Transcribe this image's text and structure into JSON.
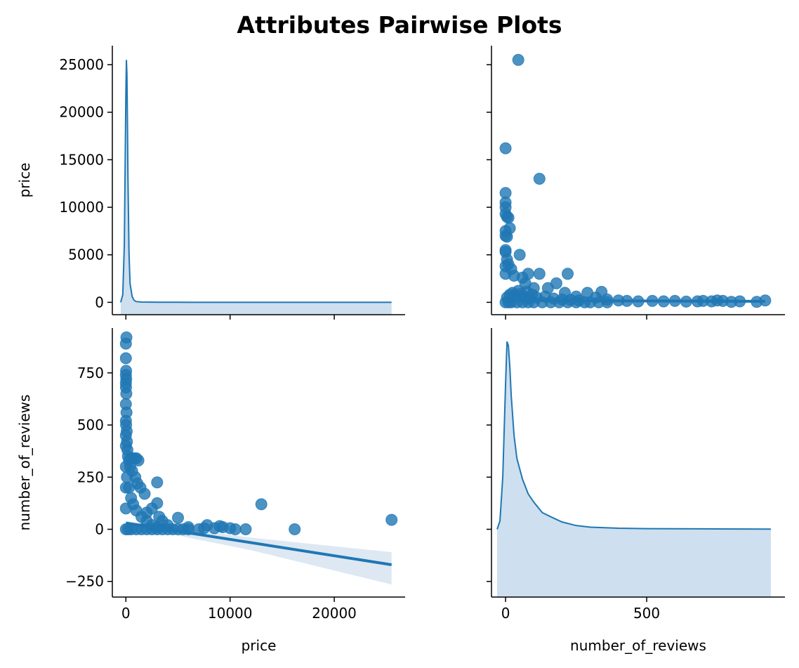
{
  "title": "Attributes Pairwise Plots",
  "colors": {
    "primary": "#1f77b4",
    "fill": "#c6d9ec",
    "band": "#dde8f3",
    "axis": "#000000"
  },
  "variables": [
    "price",
    "number_of_reviews"
  ],
  "chart_data": [
    {
      "panel": "price-vs-price",
      "type": "area",
      "xlabel": "",
      "ylabel": "price",
      "xlim": [
        -1300,
        26800
      ],
      "ylim": [
        -1300,
        27000
      ],
      "yticks": [
        0,
        5000,
        10000,
        15000,
        20000,
        25000
      ],
      "yticklabels": [
        "0",
        "5000",
        "10000",
        "15000",
        "20000",
        "25000"
      ],
      "x": [
        -500,
        -300,
        -150,
        0,
        50,
        100,
        150,
        200,
        300,
        400,
        600,
        800,
        1000,
        1500,
        3000,
        6000,
        10000,
        15000,
        20000,
        25500
      ],
      "density": [
        0,
        800,
        6000,
        22000,
        25500,
        24000,
        19000,
        13000,
        5200,
        2000,
        600,
        200,
        80,
        30,
        10,
        6,
        4,
        3,
        2,
        2
      ],
      "density_baseline": -1300
    },
    {
      "panel": "price-vs-number_of_reviews",
      "type": "scatter",
      "xlabel": "",
      "ylabel": "",
      "xlim": [
        -50,
        990
      ],
      "ylim": [
        -1300,
        27000
      ],
      "xticks": [
        0,
        500
      ],
      "yticks": [
        0,
        5000,
        10000,
        15000,
        20000,
        25000
      ],
      "points": [
        [
          45,
          25500
        ],
        [
          0,
          16200
        ],
        [
          120,
          13000
        ],
        [
          0,
          11500
        ],
        [
          0,
          10500
        ],
        [
          0,
          10000
        ],
        [
          5,
          9000
        ],
        [
          0,
          9300
        ],
        [
          10,
          8900
        ],
        [
          15,
          7800
        ],
        [
          0,
          7500
        ],
        [
          0,
          7000
        ],
        [
          5,
          6900
        ],
        [
          50,
          5000
        ],
        [
          0,
          5500
        ],
        [
          0,
          5300
        ],
        [
          5,
          4500
        ],
        [
          10,
          4000
        ],
        [
          0,
          3800
        ],
        [
          20,
          3500
        ],
        [
          80,
          3000
        ],
        [
          120,
          3000
        ],
        [
          220,
          3000
        ],
        [
          180,
          2000
        ],
        [
          150,
          1500
        ],
        [
          210,
          1000
        ],
        [
          290,
          1000
        ],
        [
          340,
          1100
        ],
        [
          0,
          3000
        ],
        [
          30,
          2800
        ],
        [
          60,
          2600
        ],
        [
          70,
          2000
        ],
        [
          100,
          1500
        ],
        [
          250,
          600
        ],
        [
          320,
          500
        ],
        [
          360,
          300
        ],
        [
          400,
          200
        ],
        [
          430,
          150
        ],
        [
          470,
          100
        ],
        [
          520,
          150
        ],
        [
          560,
          100
        ],
        [
          600,
          150
        ],
        [
          640,
          80
        ],
        [
          680,
          100
        ],
        [
          700,
          150
        ],
        [
          730,
          100
        ],
        [
          750,
          200
        ],
        [
          770,
          150
        ],
        [
          800,
          50
        ],
        [
          830,
          100
        ],
        [
          890,
          50
        ],
        [
          920,
          200
        ],
        [
          0,
          0
        ],
        [
          10,
          0
        ],
        [
          20,
          0
        ],
        [
          40,
          0
        ],
        [
          60,
          0
        ],
        [
          80,
          0
        ],
        [
          100,
          0
        ],
        [
          130,
          0
        ],
        [
          160,
          0
        ],
        [
          190,
          0
        ],
        [
          220,
          0
        ],
        [
          250,
          0
        ],
        [
          280,
          0
        ],
        [
          300,
          0
        ],
        [
          330,
          0
        ],
        [
          360,
          0
        ],
        [
          5,
          500
        ],
        [
          15,
          800
        ],
        [
          25,
          1000
        ],
        [
          35,
          700
        ],
        [
          45,
          1200
        ],
        [
          55,
          900
        ],
        [
          65,
          600
        ],
        [
          75,
          1100
        ],
        [
          85,
          400
        ],
        [
          95,
          800
        ],
        [
          110,
          500
        ],
        [
          140,
          600
        ],
        [
          170,
          400
        ],
        [
          200,
          300
        ],
        [
          230,
          250
        ],
        [
          260,
          200
        ]
      ],
      "regression": [
        [
          0,
          200
        ],
        [
          920,
          100
        ]
      ]
    },
    {
      "panel": "number_of_reviews-vs-price",
      "type": "scatter",
      "xlabel": "price",
      "ylabel": "number_of_reviews",
      "xlim": [
        -1300,
        26800
      ],
      "ylim": [
        -325,
        965
      ],
      "xticks": [
        0,
        10000,
        20000
      ],
      "yticks": [
        -250,
        0,
        250,
        500,
        750
      ],
      "yticklabels": [
        "−250",
        "0",
        "250",
        "500",
        "750"
      ],
      "points": [
        [
          50,
          920
        ],
        [
          0,
          890
        ],
        [
          0,
          820
        ],
        [
          20,
          760
        ],
        [
          0,
          740
        ],
        [
          30,
          720
        ],
        [
          0,
          700
        ],
        [
          10,
          680
        ],
        [
          40,
          650
        ],
        [
          0,
          600
        ],
        [
          60,
          560
        ],
        [
          0,
          520
        ],
        [
          20,
          500
        ],
        [
          80,
          470
        ],
        [
          0,
          450
        ],
        [
          100,
          420
        ],
        [
          0,
          400
        ],
        [
          150,
          380
        ],
        [
          200,
          350
        ],
        [
          300,
          330
        ],
        [
          500,
          340
        ],
        [
          800,
          340
        ],
        [
          1000,
          340
        ],
        [
          1200,
          330
        ],
        [
          400,
          300
        ],
        [
          600,
          280
        ],
        [
          900,
          250
        ],
        [
          1100,
          220
        ],
        [
          1400,
          200
        ],
        [
          1800,
          170
        ],
        [
          3000,
          225
        ],
        [
          3000,
          125
        ],
        [
          2500,
          100
        ],
        [
          2000,
          80
        ],
        [
          3200,
          60
        ],
        [
          3500,
          40
        ],
        [
          5000,
          55
        ],
        [
          4000,
          20
        ],
        [
          6000,
          10
        ],
        [
          7000,
          0
        ],
        [
          7500,
          5
        ],
        [
          7800,
          20
        ],
        [
          8500,
          5
        ],
        [
          9000,
          15
        ],
        [
          9300,
          10
        ],
        [
          10000,
          5
        ],
        [
          10500,
          0
        ],
        [
          11500,
          0
        ],
        [
          13000,
          120
        ],
        [
          16200,
          0
        ],
        [
          25500,
          45
        ],
        [
          100,
          250
        ],
        [
          300,
          200
        ],
        [
          500,
          150
        ],
        [
          700,
          120
        ],
        [
          1000,
          90
        ],
        [
          1500,
          60
        ],
        [
          2000,
          40
        ],
        [
          2500,
          20
        ],
        [
          3000,
          10
        ],
        [
          0,
          300
        ],
        [
          0,
          200
        ],
        [
          0,
          100
        ],
        [
          0,
          0
        ],
        [
          200,
          0
        ],
        [
          500,
          0
        ],
        [
          1000,
          0
        ],
        [
          1500,
          0
        ],
        [
          2000,
          0
        ],
        [
          2500,
          0
        ],
        [
          3000,
          0
        ],
        [
          3500,
          0
        ],
        [
          4000,
          0
        ],
        [
          4500,
          0
        ],
        [
          5000,
          0
        ],
        [
          5500,
          0
        ],
        [
          6000,
          0
        ]
      ],
      "regression": [
        [
          0,
          30
        ],
        [
          25500,
          -170
        ]
      ],
      "ci_upper": [
        [
          0,
          40
        ],
        [
          12000,
          -40
        ],
        [
          25500,
          -110
        ]
      ],
      "ci_lower": [
        [
          0,
          20
        ],
        [
          12000,
          -100
        ],
        [
          25500,
          -265
        ]
      ]
    },
    {
      "panel": "number_of_reviews-vs-number_of_reviews",
      "type": "area",
      "xlabel": "number_of_reviews",
      "ylabel": "",
      "xlim": [
        -50,
        990
      ],
      "ylim": [
        -325,
        965
      ],
      "xticks": [
        0,
        500
      ],
      "yticks": [
        -250,
        0,
        250,
        500,
        750
      ],
      "x": [
        -30,
        -20,
        -10,
        0,
        5,
        10,
        15,
        20,
        30,
        40,
        60,
        80,
        100,
        130,
        160,
        200,
        250,
        300,
        400,
        500,
        700,
        940
      ],
      "density": [
        0,
        40,
        250,
        700,
        900,
        880,
        780,
        640,
        450,
        340,
        240,
        170,
        130,
        80,
        60,
        35,
        18,
        10,
        5,
        3,
        2,
        1
      ],
      "density_baseline": -325
    }
  ]
}
